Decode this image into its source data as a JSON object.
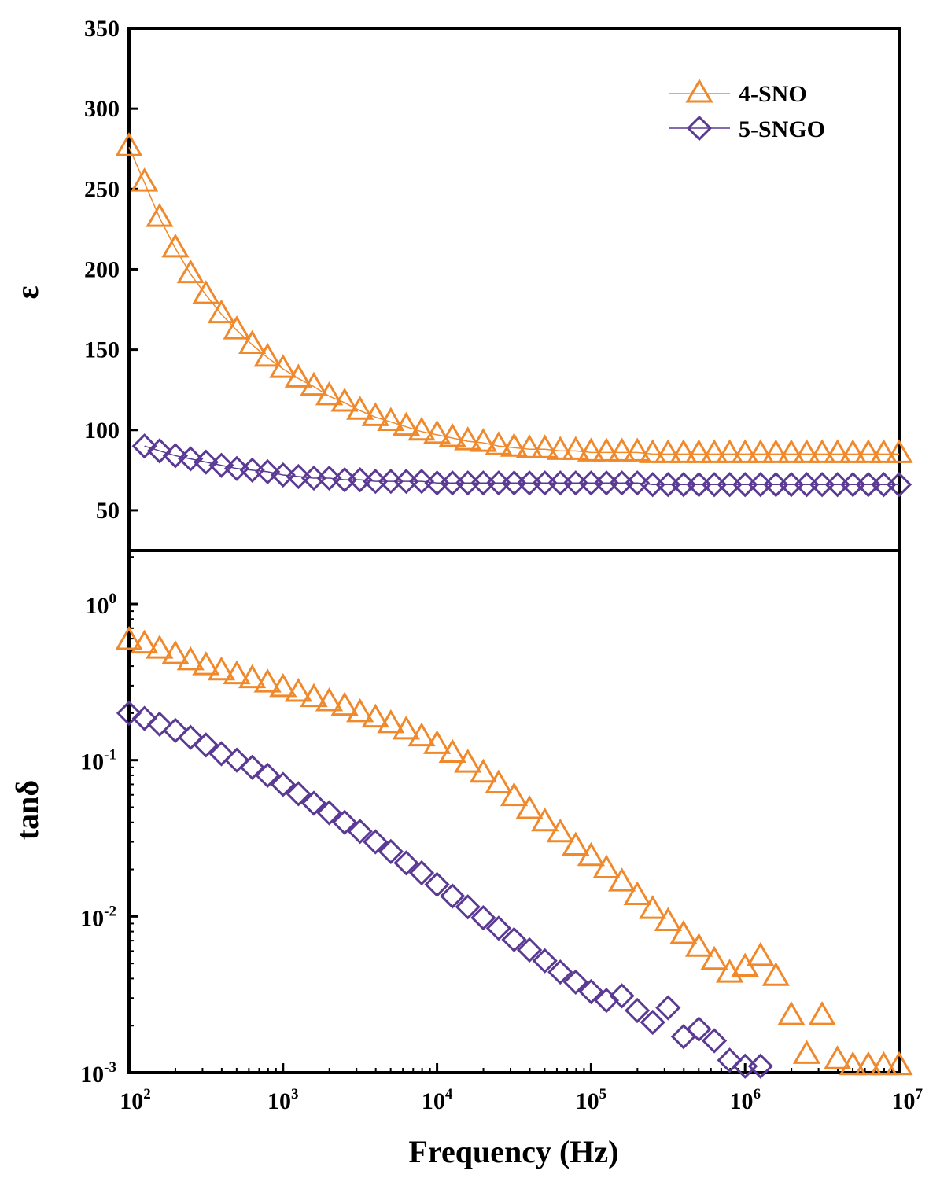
{
  "colors": {
    "sno": "#F0892B",
    "sngo": "#5B3A93",
    "axis": "#000000"
  },
  "chart_data": [
    {
      "type": "scatter",
      "panel": "top",
      "ylabel": "ε",
      "xlabel": "",
      "xscale": "log",
      "xlim": [
        100,
        10000000
      ],
      "ylim": [
        25,
        350
      ],
      "yticks": [
        50,
        100,
        150,
        200,
        250,
        300,
        350
      ],
      "ytick_labels": [
        "50",
        "100",
        "150",
        "200",
        "250",
        "300",
        "350"
      ],
      "legend": {
        "placement": "top-right",
        "entries": [
          "4-SNO",
          "5-SNGO"
        ]
      },
      "series": [
        {
          "name": "4-SNO",
          "marker": "triangle",
          "color": "#F0892B",
          "line": true,
          "x": [
            100,
            126,
            158,
            200,
            251,
            316,
            398,
            501,
            631,
            794,
            1000,
            1259,
            1585,
            1995,
            2512,
            3162,
            3981,
            5012,
            6310,
            7943,
            10000,
            12589,
            15849,
            19953,
            25119,
            31623,
            39811,
            50119,
            63096,
            79433,
            100000,
            125893,
            158489,
            199526,
            251189,
            316228,
            398107,
            501187,
            630957,
            794328,
            1000000,
            1258925,
            1584893,
            1995262,
            2511886,
            3162278,
            3981072,
            5011872,
            6309573,
            7943282,
            10000000
          ],
          "y": [
            276,
            254,
            232,
            213,
            197,
            184,
            172,
            162,
            153,
            145,
            138,
            132,
            127,
            121,
            117,
            112,
            108,
            105,
            102,
            99,
            97,
            95,
            93,
            92,
            90,
            89,
            88,
            88,
            87,
            87,
            86,
            86,
            86,
            86,
            85,
            85,
            85,
            85,
            85,
            85,
            85,
            85,
            85,
            85,
            85,
            85,
            85,
            85,
            85,
            85,
            85
          ]
        },
        {
          "name": "5-SNGO",
          "marker": "diamond",
          "color": "#5B3A93",
          "line": true,
          "x": [
            126,
            158,
            200,
            251,
            316,
            398,
            501,
            631,
            794,
            1000,
            1259,
            1585,
            1995,
            2512,
            3162,
            3981,
            5012,
            6310,
            7943,
            10000,
            12589,
            15849,
            19953,
            25119,
            31623,
            39811,
            50119,
            63096,
            79433,
            100000,
            125893,
            158489,
            199526,
            251189,
            316228,
            398107,
            501187,
            630957,
            794328,
            1000000,
            1258925,
            1584893,
            1995262,
            2511886,
            3162278,
            3981072,
            5011872,
            6309573,
            7943282,
            10000000
          ],
          "y": [
            90,
            87,
            84,
            82,
            80,
            78,
            76,
            75,
            74,
            72,
            71,
            70,
            70,
            69,
            69,
            68,
            68,
            68,
            68,
            67,
            67,
            67,
            67,
            67,
            67,
            67,
            67,
            67,
            67,
            67,
            67,
            67,
            67,
            66,
            66,
            66,
            66,
            66,
            66,
            66,
            66,
            66,
            66,
            66,
            66,
            66,
            66,
            66,
            66,
            66
          ]
        }
      ]
    },
    {
      "type": "scatter",
      "panel": "bottom",
      "ylabel": "tanδ",
      "xlabel": "Frequency (Hz)",
      "xscale": "log",
      "yscale": "log",
      "xlim": [
        100,
        10000000
      ],
      "ylim": [
        0.001,
        2.2
      ],
      "xticks": [
        100,
        1000,
        10000,
        100000,
        1000000,
        10000000
      ],
      "xtick_labels": [
        {
          "base": "10",
          "exp": "2"
        },
        {
          "base": "10",
          "exp": "3"
        },
        {
          "base": "10",
          "exp": "4"
        },
        {
          "base": "10",
          "exp": "5"
        },
        {
          "base": "10",
          "exp": "6"
        },
        {
          "base": "10",
          "exp": "7"
        }
      ],
      "yticks": [
        0.001,
        0.01,
        0.1,
        1
      ],
      "ytick_labels": [
        {
          "base": "10",
          "exp": "-3"
        },
        {
          "base": "10",
          "exp": "-2"
        },
        {
          "base": "10",
          "exp": "-1"
        },
        {
          "base": "10",
          "exp": "0"
        }
      ],
      "series": [
        {
          "name": "4-SNO",
          "marker": "triangle",
          "color": "#F0892B",
          "x": [
            100,
            126,
            158,
            200,
            251,
            316,
            398,
            501,
            631,
            794,
            1000,
            1259,
            1585,
            1995,
            2512,
            3162,
            3981,
            5012,
            6310,
            7943,
            10000,
            12589,
            15849,
            19953,
            25119,
            31623,
            39811,
            50119,
            63096,
            79433,
            100000,
            125893,
            158489,
            199526,
            251189,
            316228,
            398107,
            501187,
            630957,
            794328,
            1000000,
            1258925,
            1584893,
            1995262,
            2511886,
            3162278,
            3981072,
            5011872,
            6309573,
            7943282,
            10000000
          ],
          "y": [
            0.58,
            0.55,
            0.51,
            0.47,
            0.43,
            0.4,
            0.37,
            0.35,
            0.33,
            0.31,
            0.29,
            0.27,
            0.25,
            0.235,
            0.22,
            0.2,
            0.185,
            0.17,
            0.155,
            0.14,
            0.125,
            0.11,
            0.095,
            0.082,
            0.07,
            0.058,
            0.048,
            0.04,
            0.034,
            0.028,
            0.024,
            0.02,
            0.0165,
            0.0135,
            0.011,
            0.0092,
            0.0076,
            0.0063,
            0.0052,
            0.0043,
            0.0047,
            0.0055,
            0.0041,
            0.0023,
            0.0013,
            0.0023,
            0.0012,
            0.0011,
            0.0011,
            0.0011,
            0.0011
          ]
        },
        {
          "name": "5-SNGO",
          "marker": "diamond",
          "color": "#5B3A93",
          "x": [
            100,
            126,
            158,
            200,
            251,
            316,
            398,
            501,
            631,
            794,
            1000,
            1259,
            1585,
            1995,
            2512,
            3162,
            3981,
            5012,
            6310,
            7943,
            10000,
            12589,
            15849,
            19953,
            25119,
            31623,
            39811,
            50119,
            63096,
            79433,
            100000,
            125893,
            158489,
            199526,
            251189,
            316228,
            398107,
            501187,
            630957,
            794328,
            1000000,
            1258925
          ],
          "y": [
            0.2,
            0.185,
            0.17,
            0.155,
            0.14,
            0.125,
            0.11,
            0.1,
            0.09,
            0.08,
            0.07,
            0.061,
            0.053,
            0.046,
            0.04,
            0.035,
            0.03,
            0.026,
            0.022,
            0.019,
            0.016,
            0.0135,
            0.0115,
            0.0098,
            0.0084,
            0.0071,
            0.0061,
            0.0052,
            0.0044,
            0.0038,
            0.0033,
            0.0029,
            0.0031,
            0.0025,
            0.0021,
            0.0026,
            0.0017,
            0.0019,
            0.0016,
            0.0012,
            0.0011,
            0.0011
          ]
        }
      ]
    }
  ]
}
